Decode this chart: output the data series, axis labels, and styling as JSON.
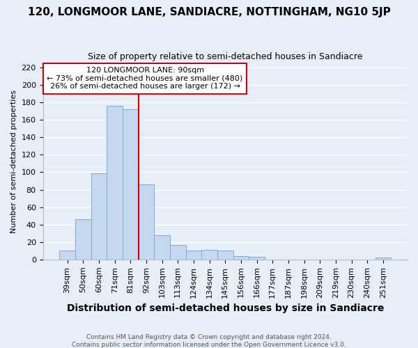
{
  "title": "120, LONGMOOR LANE, SANDIACRE, NOTTINGHAM, NG10 5JP",
  "subtitle": "Size of property relative to semi-detached houses in Sandiacre",
  "xlabel": "Distribution of semi-detached houses by size in Sandiacre",
  "ylabel": "Number of semi-detached properties",
  "categories": [
    "39sqm",
    "50sqm",
    "60sqm",
    "71sqm",
    "81sqm",
    "92sqm",
    "103sqm",
    "113sqm",
    "124sqm",
    "134sqm",
    "145sqm",
    "156sqm",
    "166sqm",
    "177sqm",
    "187sqm",
    "198sqm",
    "209sqm",
    "219sqm",
    "230sqm",
    "240sqm",
    "251sqm"
  ],
  "values": [
    10,
    46,
    99,
    176,
    172,
    86,
    28,
    17,
    10,
    11,
    10,
    4,
    3,
    0,
    0,
    0,
    0,
    0,
    0,
    0,
    2
  ],
  "bar_color": "#c5d8f0",
  "bar_edge_color": "#7aadd4",
  "property_size_label": "120 LONGMOOR LANE: 90sqm",
  "pct_smaller": 73,
  "count_smaller": 480,
  "pct_larger": 26,
  "count_larger": 172,
  "vline_color": "#cc0000",
  "vline_x": 4.5,
  "annotation_box_edge": "#cc0000",
  "bg_color": "#e8eef8",
  "grid_color": "#ffffff",
  "ylim": [
    0,
    225
  ],
  "yticks": [
    0,
    20,
    40,
    60,
    80,
    100,
    120,
    140,
    160,
    180,
    200,
    220
  ],
  "title_fontsize": 11,
  "subtitle_fontsize": 9,
  "ylabel_fontsize": 8,
  "xlabel_fontsize": 10,
  "tick_fontsize": 8,
  "footer1": "Contains HM Land Registry data © Crown copyright and database right 2024.",
  "footer2": "Contains public sector information licensed under the Open Government Licence v3.0."
}
